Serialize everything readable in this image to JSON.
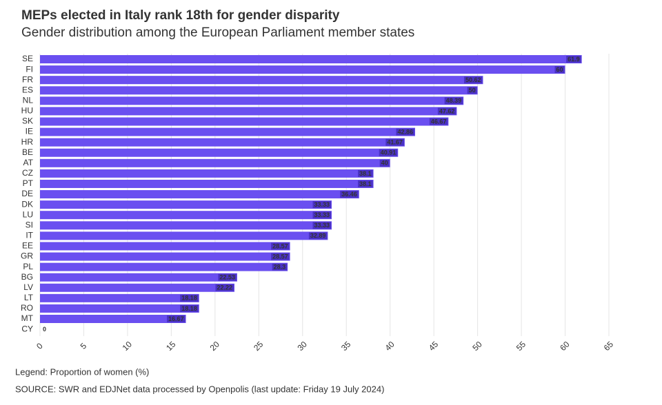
{
  "chart_data": {
    "type": "barh",
    "title": "MEPs elected in Italy rank 18th for gender disparity",
    "subtitle": "Gender distribution among the European Parliament member states",
    "categories": [
      "SE",
      "FI",
      "FR",
      "ES",
      "NL",
      "HU",
      "SK",
      "IE",
      "HR",
      "BE",
      "AT",
      "CZ",
      "PT",
      "DE",
      "DK",
      "LU",
      "SI",
      "IT",
      "EE",
      "GR",
      "PL",
      "BG",
      "LV",
      "LT",
      "RO",
      "MT",
      "CY"
    ],
    "values": [
      61.9,
      60,
      50.62,
      50,
      48.39,
      47.62,
      46.67,
      42.86,
      41.67,
      40.91,
      40,
      38.1,
      38.1,
      36.46,
      33.33,
      33.33,
      33.33,
      32.89,
      28.57,
      28.57,
      28.3,
      22.53,
      22.22,
      18.18,
      18.18,
      16.67,
      0
    ],
    "color": "#6a4ff0",
    "xlim": [
      0,
      65
    ],
    "xticks": [
      0,
      5,
      10,
      15,
      20,
      25,
      30,
      35,
      40,
      45,
      50,
      55,
      60,
      65
    ],
    "grid": true,
    "legend_text": "Legend: Proportion of women (%)",
    "source": "SOURCE: SWR and EDJNet data processed by Openpolis (last update: Friday 19 July 2024)"
  }
}
